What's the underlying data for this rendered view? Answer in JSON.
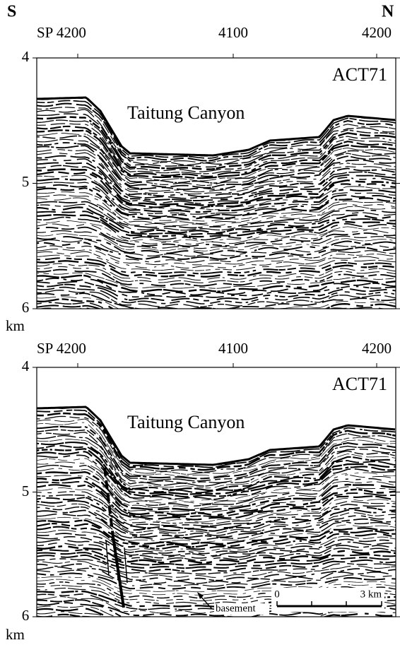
{
  "header": {
    "left": "S",
    "right": "N"
  },
  "panels": [
    {
      "top_labels": [
        "SP 4200",
        "4100",
        "4200"
      ],
      "depth_labels": [
        "4",
        "5",
        "6"
      ],
      "unit": "km",
      "line_name": "ACT71",
      "feature": "Taitung Canyon"
    },
    {
      "top_labels": [
        "SP 4200",
        "4100",
        "4200"
      ],
      "depth_labels": [
        "4",
        "5",
        "6"
      ],
      "unit": "km",
      "line_name": "ACT71",
      "feature": "Taitung Canyon",
      "annotations": {
        "basement": "basement",
        "scale_start": "0",
        "scale_end": "3 km"
      }
    }
  ]
}
